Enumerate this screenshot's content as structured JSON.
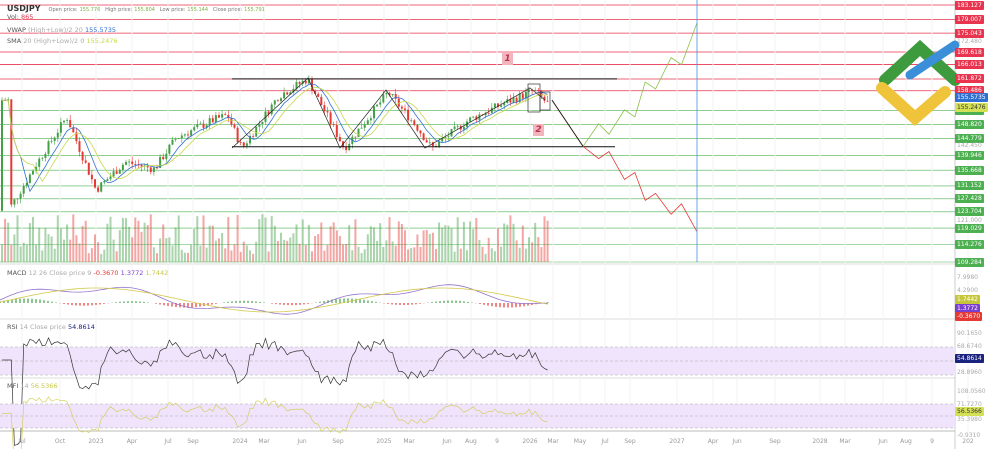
{
  "header": {
    "symbol": "USDJPY",
    "open_label": "Open price:",
    "open": "155.776",
    "high_label": "High price:",
    "high": "155.804",
    "low_label": "Low price:",
    "low": "155.144",
    "close_label": "Close price:",
    "close": "155.791",
    "vol_label": "Vol:",
    "vol": "865"
  },
  "indicators": {
    "vwap": {
      "name": "VWAP",
      "params": "(High+Low)/2 20",
      "value": "155.5735"
    },
    "sma": {
      "name": "SMA",
      "params": "20 (High+Low)/2 0",
      "value": "155.2476"
    },
    "macd": {
      "name": "MACD",
      "params": "12 26 Close price 9",
      "v1": "-0.3670",
      "v2": "1.3772",
      "v3": "1.7442"
    },
    "rsi": {
      "name": "RSI",
      "params": "14 Close price",
      "value": "54.8614"
    },
    "mfi": {
      "name": "MFI",
      "params": "14",
      "value": "56.5366"
    }
  },
  "annotations": {
    "wave1": "1",
    "wave2": "2"
  },
  "colors": {
    "resistance": "#e8344e",
    "support": "#4caf50",
    "vwap": "#2f6fd0",
    "sma": "#c8d84a",
    "projection_up": "#8bc34a",
    "projection_down": "#e53935",
    "forecast_line": "#4a90e2",
    "rsi_band": "#efe4fb"
  },
  "price_axis": {
    "resistance_levels": [
      "183.127",
      "179.007",
      "175.043",
      "169.618",
      "166.013",
      "161.872",
      "158.486"
    ],
    "support_levels": [
      "152.782",
      "148.820",
      "144.779",
      "139.946",
      "135.668",
      "131.152",
      "127.428",
      "123.704",
      "119.029",
      "114.276",
      "109.284"
    ],
    "vwap_tag": "155.5735",
    "sma_tag": "155.2476",
    "grid_labels": [
      "172.480",
      "142.450",
      "121.000"
    ]
  },
  "macd_axis": {
    "ticks": [
      "7.9980",
      "4.2900"
    ],
    "tags": [
      "1.7442",
      "1.3772",
      "-0.3670"
    ]
  },
  "rsi_axis": {
    "ticks": [
      "90.1650",
      "68.6740",
      "28.8960"
    ],
    "tag": "54.8614"
  },
  "mfi_axis": {
    "ticks": [
      "108.0560",
      "71.7270",
      "35.3980",
      "-0.9310"
    ],
    "tag": "56.5366"
  },
  "chart_data": {
    "type": "candlestick",
    "title": "USDJPY",
    "x_ticks": [
      "Jul",
      "Oct",
      "2023",
      "Apr",
      "Jul",
      "Sep",
      "2024",
      "Mar",
      "Jun",
      "Sep",
      "2025",
      "Mar",
      "Jun",
      "Aug",
      "9",
      "2026",
      "Mar",
      "May",
      "Jul",
      "Sep",
      "2027",
      "Apr",
      "Jun",
      "Sep",
      "2028",
      "Mar",
      "Jun",
      "Aug",
      "9",
      "202"
    ],
    "ylim": [
      109.284,
      183.127
    ],
    "series": [
      {
        "values": [
          [
            2022.4,
            124
          ],
          [
            2022.6,
            138
          ],
          [
            2022.8,
            151
          ],
          [
            2023.0,
            130
          ],
          [
            2023.2,
            138
          ],
          [
            2023.4,
            136
          ],
          [
            2023.55,
            145
          ],
          [
            2023.8,
            150
          ],
          [
            2023.9,
            151.5
          ],
          [
            2024.0,
            142
          ],
          [
            2024.25,
            157
          ],
          [
            2024.45,
            161.9
          ],
          [
            2024.7,
            142
          ],
          [
            2025.0,
            158
          ],
          [
            2025.2,
            148
          ],
          [
            2025.3,
            142
          ],
          [
            2025.55,
            150
          ],
          [
            2025.8,
            155
          ],
          [
            2026.0,
            158.5
          ],
          [
            2026.1,
            154.5
          ],
          [
            2026.15,
            155.79
          ]
        ]
      }
    ],
    "projection_up": [
      [
        2026.15,
        155.8
      ],
      [
        2026.45,
        142.5
      ],
      [
        2026.6,
        149
      ],
      [
        2026.7,
        146
      ],
      [
        2026.85,
        153
      ],
      [
        2026.95,
        151
      ],
      [
        2027.05,
        161
      ],
      [
        2027.15,
        159
      ],
      [
        2027.3,
        168
      ],
      [
        2027.4,
        166
      ],
      [
        2027.55,
        178
      ]
    ],
    "projection_down": [
      [
        2026.15,
        155.8
      ],
      [
        2026.45,
        142.5
      ],
      [
        2026.6,
        139
      ],
      [
        2026.7,
        141
      ],
      [
        2026.85,
        133
      ],
      [
        2026.95,
        135
      ],
      [
        2027.05,
        127
      ],
      [
        2027.15,
        129
      ],
      [
        2027.3,
        123
      ],
      [
        2027.4,
        126
      ],
      [
        2027.55,
        118
      ]
    ],
    "channel": {
      "top": 161.9,
      "bottom": 142.4
    }
  }
}
